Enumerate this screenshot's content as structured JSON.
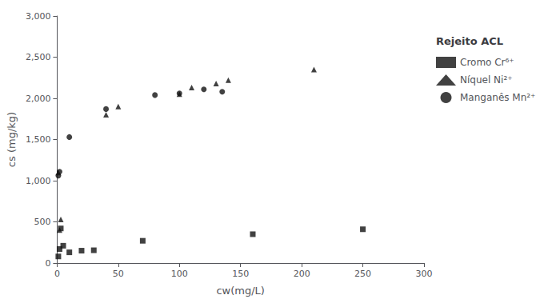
{
  "chart_data": {
    "type": "scatter",
    "xlabel": "cw(mg/L)",
    "ylabel": "cs (mg/kg)",
    "legend_title": "Rejeito ACL",
    "xlim": [
      0,
      300
    ],
    "ylim": [
      0,
      3000
    ],
    "xticks": [
      0,
      50,
      100,
      150,
      200,
      250,
      300
    ],
    "yticks": [
      0,
      500,
      1000,
      1500,
      2000,
      2500,
      3000
    ],
    "grid": false,
    "legend": "right",
    "series": [
      {
        "name": "Cromo Cr⁶⁺",
        "marker": "square",
        "color": "#111111",
        "x": [
          1,
          2,
          3,
          5,
          10,
          20,
          30,
          70,
          160,
          250
        ],
        "values": [
          80,
          170,
          420,
          210,
          130,
          150,
          155,
          270,
          350,
          410
        ]
      },
      {
        "name": "Níquel Ni²⁺",
        "marker": "triangle",
        "color": "#111111",
        "x": [
          1,
          2,
          3,
          40,
          50,
          100,
          110,
          130,
          140,
          210
        ],
        "values": [
          1100,
          400,
          530,
          1800,
          1900,
          2050,
          2130,
          2180,
          2220,
          2350
        ]
      },
      {
        "name": "Manganês Mn²⁺",
        "marker": "circle",
        "color": "#111111",
        "x": [
          1,
          2,
          10,
          40,
          80,
          100,
          120,
          135
        ],
        "values": [
          1060,
          1110,
          1530,
          1870,
          2040,
          2060,
          2110,
          2080
        ]
      }
    ]
  }
}
